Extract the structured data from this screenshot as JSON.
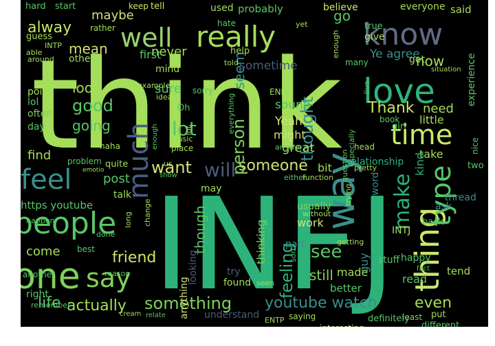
{
  "wordcloud": {
    "background": "#000000",
    "palette": [
      "#a4de5a",
      "#2db37a",
      "#58c766",
      "#7fd15b",
      "#3a8f8c",
      "#c9e86a",
      "#d2e27a",
      "#5f6b86",
      "#4a5c7d"
    ],
    "words": [
      {
        "text": "think",
        "color": "#a4de5a"
      },
      {
        "text": "INFJ",
        "color": "#2db37a"
      },
      {
        "text": "people",
        "color": "#58c766"
      },
      {
        "text": "one",
        "color": "#7fd15b"
      },
      {
        "text": "well",
        "color": "#9ad26b"
      },
      {
        "text": "really",
        "color": "#a4de5a"
      },
      {
        "text": "know",
        "color": "#5f6b86"
      },
      {
        "text": "love",
        "color": "#2db37a"
      },
      {
        "text": "time",
        "color": "#c9e86a"
      },
      {
        "text": "thing",
        "color": "#c9e86a"
      },
      {
        "text": "type",
        "color": "#58c766"
      },
      {
        "text": "way",
        "color": "#3a8f8c"
      },
      {
        "text": "feel",
        "color": "#3a8f8c"
      },
      {
        "text": "much",
        "color": "#4a5c7d"
      },
      {
        "text": "say",
        "color": "#7fd15b"
      },
      {
        "text": "something",
        "color": "#7fd15b"
      },
      {
        "text": "youtube watch",
        "color": "#3a8f8c"
      },
      {
        "text": "make",
        "color": "#2db37a"
      },
      {
        "text": "life",
        "color": "#58c766"
      },
      {
        "text": "actually",
        "color": "#a4de5a"
      },
      {
        "text": "friend",
        "color": "#c9e86a"
      },
      {
        "text": "want",
        "color": "#d2e27a"
      },
      {
        "text": "someone",
        "color": "#d2e27a"
      },
      {
        "text": "will",
        "color": "#4a5c7d"
      },
      {
        "text": "good",
        "color": "#58c766"
      },
      {
        "text": "lot",
        "color": "#58c766"
      },
      {
        "text": "see",
        "color": "#58c766"
      },
      {
        "text": "still",
        "color": "#7fd15b"
      },
      {
        "text": "even",
        "color": "#a4de5a"
      },
      {
        "text": "Thank",
        "color": "#c9e86a"
      },
      {
        "text": "need",
        "color": "#a4de5a"
      },
      {
        "text": "little",
        "color": "#a4de5a"
      },
      {
        "text": "now",
        "color": "#a4de5a"
      },
      {
        "text": "person",
        "color": "#7fd15b"
      },
      {
        "text": "thought",
        "color": "#3a8f8c"
      },
      {
        "text": "seem",
        "color": "#3a8f8c"
      },
      {
        "text": "feeling",
        "color": "#2db37a"
      },
      {
        "text": "alway",
        "color": "#c9e86a"
      },
      {
        "text": "maybe",
        "color": "#d2e27a"
      },
      {
        "text": "mean",
        "color": "#d2e27a"
      },
      {
        "text": "look",
        "color": "#a4de5a"
      },
      {
        "text": "sure",
        "color": "#58c766"
      },
      {
        "text": "never",
        "color": "#a4de5a"
      },
      {
        "text": "going",
        "color": "#58c766"
      },
      {
        "text": "find",
        "color": "#a4de5a"
      },
      {
        "text": "post",
        "color": "#58c766"
      },
      {
        "text": "come",
        "color": "#a4de5a"
      },
      {
        "text": "though",
        "color": "#58c766"
      },
      {
        "text": "work",
        "color": "#d2e27a"
      },
      {
        "text": "made",
        "color": "#a4de5a"
      },
      {
        "text": "go",
        "color": "#58c766"
      },
      {
        "text": "sometime",
        "color": "#4a5c7d"
      },
      {
        "text": "Ye agree",
        "color": "#3a8f8c"
      },
      {
        "text": "https youtube",
        "color": "#58c766"
      },
      {
        "text": "talk",
        "color": "#a4de5a"
      },
      {
        "text": "guy",
        "color": "#3a8f8c"
      },
      {
        "text": "part",
        "color": "#3a8f8c"
      },
      {
        "text": "usually",
        "color": "#7fd15b"
      },
      {
        "text": "thinking",
        "color": "#7fd15b"
      },
      {
        "text": "anything",
        "color": "#d2e27a"
      },
      {
        "text": "great",
        "color": "#a4de5a"
      },
      {
        "text": "bit",
        "color": "#a4de5a"
      },
      {
        "text": "Yeah",
        "color": "#d2e27a"
      },
      {
        "text": "might",
        "color": "#d2e27a"
      },
      {
        "text": "sound",
        "color": "#58c766"
      },
      {
        "text": "relationship",
        "color": "#2db37a"
      },
      {
        "text": "take",
        "color": "#a4de5a"
      },
      {
        "text": "kind",
        "color": "#2db37a"
      },
      {
        "text": "word",
        "color": "#3a8f8c"
      },
      {
        "text": "ask",
        "color": "#3a8f8c"
      },
      {
        "text": "thread",
        "color": "#3a8f8c"
      },
      {
        "text": "tend",
        "color": "#a4de5a"
      },
      {
        "text": "read",
        "color": "#58c766"
      },
      {
        "text": "happy",
        "color": "#58c766"
      },
      {
        "text": "INTJ",
        "color": "#a4de5a"
      },
      {
        "text": "better",
        "color": "#58c766"
      },
      {
        "text": "stuff",
        "color": "#58c766"
      },
      {
        "text": "try",
        "color": "#4a5c7d"
      },
      {
        "text": "found",
        "color": "#a4de5a"
      },
      {
        "text": "may",
        "color": "#a4de5a"
      },
      {
        "text": "looking",
        "color": "#4a5c7d"
      },
      {
        "text": "understand",
        "color": "#4a5c7d"
      },
      {
        "text": "ENTP",
        "color": "#a4de5a"
      },
      {
        "text": "saying",
        "color": "#a4de5a"
      },
      {
        "text": "interesting",
        "color": "#d2e27a"
      },
      {
        "text": "definitely",
        "color": "#58c766"
      },
      {
        "text": "least",
        "color": "#7fd15b"
      },
      {
        "text": "put",
        "color": "#a4de5a"
      },
      {
        "text": "different",
        "color": "#58c766"
      },
      {
        "text": "right",
        "color": "#58c766"
      },
      {
        "text": "remember",
        "color": "#58c766"
      },
      {
        "text": "another",
        "color": "#58c766"
      },
      {
        "text": "best",
        "color": "#58c766"
      },
      {
        "text": "reason",
        "color": "#58c766"
      },
      {
        "text": "hard",
        "color": "#58c766"
      },
      {
        "text": "start",
        "color": "#58c766"
      },
      {
        "text": "keep",
        "color": "#c9e86a"
      },
      {
        "text": "tell",
        "color": "#c9e86a"
      },
      {
        "text": "used",
        "color": "#a4de5a"
      },
      {
        "text": "probably",
        "color": "#58c766"
      },
      {
        "text": "believe",
        "color": "#c9e86a"
      },
      {
        "text": "everyone",
        "color": "#a4de5a"
      },
      {
        "text": "said",
        "color": "#a4de5a"
      },
      {
        "text": "rather",
        "color": "#a4de5a"
      },
      {
        "text": "guess",
        "color": "#a4de5a"
      },
      {
        "text": "other",
        "color": "#a4de5a"
      },
      {
        "text": "INTP",
        "color": "#a4de5a"
      },
      {
        "text": "first",
        "color": "#58c766"
      },
      {
        "text": "mind",
        "color": "#a4de5a"
      },
      {
        "text": "help",
        "color": "#a4de5a"
      },
      {
        "text": "got",
        "color": "#a4de5a"
      },
      {
        "text": "give",
        "color": "#a4de5a"
      },
      {
        "text": "true",
        "color": "#58c766"
      },
      {
        "text": "experience",
        "color": "#58c766"
      },
      {
        "text": "situation",
        "color": "#a4de5a"
      },
      {
        "text": "point",
        "color": "#a4de5a"
      },
      {
        "text": "lol",
        "color": "#58c766"
      },
      {
        "text": "often",
        "color": "#7fd15b"
      },
      {
        "text": "day",
        "color": "#58c766"
      },
      {
        "text": "idea",
        "color": "#a4de5a"
      },
      {
        "text": "sorry",
        "color": "#58c766"
      },
      {
        "text": "ENFP",
        "color": "#a4de5a"
      },
      {
        "text": "everything",
        "color": "#58c766"
      },
      {
        "text": "answer",
        "color": "#58c766"
      },
      {
        "text": "girl",
        "color": "#58c766"
      },
      {
        "text": "book",
        "color": "#58c766"
      },
      {
        "text": "haha",
        "color": "#a4de5a"
      },
      {
        "text": "place",
        "color": "#a4de5a"
      },
      {
        "text": "problem",
        "color": "#58c766"
      },
      {
        "text": "quite",
        "color": "#a4de5a"
      },
      {
        "text": "either",
        "color": "#58c766"
      },
      {
        "text": "function",
        "color": "#a4de5a"
      },
      {
        "text": "pretty",
        "color": "#a4de5a"
      },
      {
        "text": "without",
        "color": "#a4de5a"
      },
      {
        "text": "question",
        "color": "#58c766"
      },
      {
        "text": "trying",
        "color": "#a4de5a"
      },
      {
        "text": "getting",
        "color": "#a4de5a"
      },
      {
        "text": "fact",
        "color": "#58c766"
      },
      {
        "text": "head",
        "color": "#a4de5a"
      },
      {
        "text": "back",
        "color": "#58c766"
      },
      {
        "text": "two",
        "color": "#58c766"
      },
      {
        "text": "talking",
        "color": "#58c766"
      },
      {
        "text": "happen",
        "color": "#58c766"
      },
      {
        "text": "change",
        "color": "#a4de5a"
      },
      {
        "text": "long",
        "color": "#a4de5a"
      },
      {
        "text": "hate",
        "color": "#58c766"
      },
      {
        "text": "told",
        "color": "#a4de5a"
      },
      {
        "text": "yet",
        "color": "#a4de5a"
      },
      {
        "text": "many",
        "color": "#58c766"
      },
      {
        "text": "enough",
        "color": "#a4de5a"
      },
      {
        "text": "able",
        "color": "#a4de5a"
      },
      {
        "text": "around",
        "color": "#a4de5a"
      },
      {
        "text": "example",
        "color": "#a4de5a"
      },
      {
        "text": "Oh",
        "color": "#58c766"
      },
      {
        "text": "us",
        "color": "#a4de5a"
      },
      {
        "text": "show",
        "color": "#58c766"
      },
      {
        "text": "emotio",
        "color": "#a4de5a"
      },
      {
        "text": "cream",
        "color": "#a4de5a"
      },
      {
        "text": "relate",
        "color": "#58c766"
      },
      {
        "text": "enough",
        "color": "#58c766"
      },
      {
        "text": "nice",
        "color": "#58c766"
      },
      {
        "text": "live",
        "color": "#58c766"
      },
      {
        "text": "especially",
        "color": "#58c766"
      },
      {
        "text": "music",
        "color": "#a4de5a"
      },
      {
        "text": "seen",
        "color": "#a4de5a"
      },
      {
        "text": "done",
        "color": "#58c766"
      },
      {
        "text": "sort",
        "color": "#58c766"
      },
      {
        "text": "lot",
        "color": "#a4de5a"
      }
    ]
  }
}
